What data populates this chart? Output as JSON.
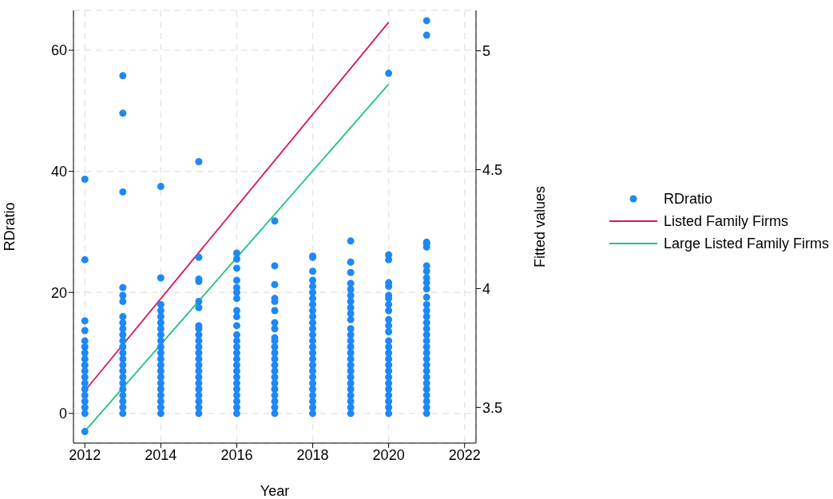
{
  "chart_data": {
    "type": "scatter",
    "xlabel": "Year",
    "ylabel": "RDratio",
    "y2label": "Fitted values",
    "xlim": [
      2011.7,
      2022.3
    ],
    "xticks": [
      2012,
      2014,
      2016,
      2018,
      2020,
      2022
    ],
    "ylim": [
      -4.9,
      66.6
    ],
    "yticks": [
      0,
      20,
      40,
      60
    ],
    "y2lim": [
      3.35,
      5.17
    ],
    "y2ticks": [
      3.5,
      4,
      4.5,
      5
    ],
    "grid": true,
    "legend": "right",
    "series": [
      {
        "name": "RDratio",
        "marker": "circle",
        "color": "#1e88f5",
        "x": [
          2012,
          2012,
          2012,
          2012,
          2012,
          2012,
          2012,
          2012,
          2012,
          2012,
          2012,
          2012,
          2012,
          2012,
          2012,
          2012,
          2012,
          2012,
          2013,
          2013,
          2013,
          2013,
          2013,
          2013,
          2013,
          2013,
          2013,
          2013,
          2013,
          2013,
          2013,
          2013,
          2013,
          2013,
          2013,
          2013,
          2013,
          2013,
          2013,
          2013,
          2013,
          2014,
          2014,
          2014,
          2014,
          2014,
          2014,
          2014,
          2014,
          2014,
          2014,
          2014,
          2014,
          2014,
          2014,
          2014,
          2014,
          2014,
          2014,
          2014,
          2014,
          2014,
          2015,
          2015,
          2015,
          2015,
          2015,
          2015,
          2015,
          2015,
          2015,
          2015,
          2015,
          2015,
          2015,
          2015,
          2015,
          2015,
          2015,
          2015,
          2015,
          2015,
          2015,
          2015,
          2016,
          2016,
          2016,
          2016,
          2016,
          2016,
          2016,
          2016,
          2016,
          2016,
          2016,
          2016,
          2016,
          2016,
          2016,
          2016,
          2016,
          2016,
          2016,
          2016,
          2016,
          2016,
          2016,
          2016,
          2017,
          2017,
          2017,
          2017,
          2017,
          2017,
          2017,
          2017,
          2017,
          2017,
          2017,
          2017,
          2017,
          2017,
          2017,
          2017,
          2017,
          2017,
          2017,
          2017,
          2017,
          2017,
          2018,
          2018,
          2018,
          2018,
          2018,
          2018,
          2018,
          2018,
          2018,
          2018,
          2018,
          2018,
          2018,
          2018,
          2018,
          2018,
          2018,
          2018,
          2018,
          2018,
          2018,
          2018,
          2018,
          2018,
          2018,
          2018,
          2019,
          2019,
          2019,
          2019,
          2019,
          2019,
          2019,
          2019,
          2019,
          2019,
          2019,
          2019,
          2019,
          2019,
          2019,
          2019,
          2019,
          2019,
          2019,
          2019,
          2019,
          2019,
          2019,
          2019,
          2019,
          2020,
          2020,
          2020,
          2020,
          2020,
          2020,
          2020,
          2020,
          2020,
          2020,
          2020,
          2020,
          2020,
          2020,
          2020,
          2020,
          2020,
          2020,
          2020,
          2020,
          2020,
          2020,
          2020,
          2020,
          2020,
          2021,
          2021,
          2021,
          2021,
          2021,
          2021,
          2021,
          2021,
          2021,
          2021,
          2021,
          2021,
          2021,
          2021,
          2021,
          2021,
          2021,
          2021,
          2021,
          2021,
          2021,
          2021,
          2021,
          2021,
          2021,
          2021,
          2021,
          2021,
          2021,
          2021
        ],
        "values": [
          0,
          1,
          2,
          3,
          4,
          5,
          6,
          7,
          8,
          9,
          10,
          11,
          12,
          13.7,
          15.3,
          25.4,
          38.7,
          -3,
          0,
          1,
          2,
          3,
          4,
          5,
          6,
          7,
          8,
          9,
          10,
          11,
          12,
          13,
          14,
          15,
          16,
          18.5,
          19.5,
          20.8,
          36.6,
          49.6,
          55.8,
          0,
          1,
          2,
          3,
          4,
          5,
          6,
          7,
          8,
          9,
          10,
          11,
          12,
          13,
          14,
          15,
          16,
          17,
          18,
          22.4,
          37.5,
          0,
          1,
          2,
          3,
          4,
          5,
          6,
          7,
          8,
          9,
          10,
          11,
          12,
          13,
          14,
          14.5,
          17.5,
          18.5,
          21.8,
          22.2,
          25.8,
          41.6,
          0,
          1,
          2,
          3,
          4,
          5,
          6,
          7,
          8,
          9,
          10,
          11,
          12,
          13,
          14.5,
          16,
          17,
          19,
          20,
          20.8,
          22,
          24,
          25.5,
          26.5,
          0,
          1,
          2,
          3,
          4,
          5,
          6,
          7,
          8,
          9,
          10,
          11,
          12,
          12.5,
          14,
          15,
          17,
          18.5,
          19,
          21.3,
          24.4,
          31.8,
          0,
          1,
          2,
          3,
          4,
          5,
          6,
          7,
          8,
          9,
          10,
          11,
          12,
          13,
          14,
          15,
          16,
          17,
          18,
          19,
          20,
          21,
          22,
          23.5,
          25.8,
          26,
          0,
          1,
          2,
          3,
          4,
          5,
          6,
          7,
          8,
          9,
          10,
          11,
          12,
          13,
          14,
          15.5,
          16.5,
          17.5,
          18.5,
          19.5,
          20.5,
          21.5,
          23.3,
          25,
          28.5,
          0,
          1,
          2,
          3,
          4,
          5,
          6,
          7,
          8,
          9,
          10,
          11,
          12,
          13.5,
          14.5,
          15.5,
          17,
          18,
          19,
          19.5,
          21,
          21.6,
          25.4,
          26.2,
          56.2,
          0,
          1,
          2,
          3,
          4,
          5,
          6,
          7,
          8,
          9,
          10,
          11,
          12,
          13,
          14,
          15,
          16,
          17,
          18,
          19.2,
          20.6,
          21.6,
          22.4,
          23.5,
          24.4,
          27.5,
          28,
          28.3,
          62.5,
          64.9
        ]
      },
      {
        "name": "Listed Family Firms",
        "type": "line",
        "axis": "y2",
        "color": "#d6185a",
        "line_style": "solid",
        "x": [
          2012,
          2020
        ],
        "values": [
          3.57,
          5.12
        ]
      },
      {
        "name": "Large Listed Family Firms",
        "type": "line",
        "axis": "y2",
        "color": "#1ec47e",
        "line_style": "solid",
        "x": [
          2012,
          2020
        ],
        "values": [
          3.4,
          4.86
        ]
      }
    ]
  }
}
